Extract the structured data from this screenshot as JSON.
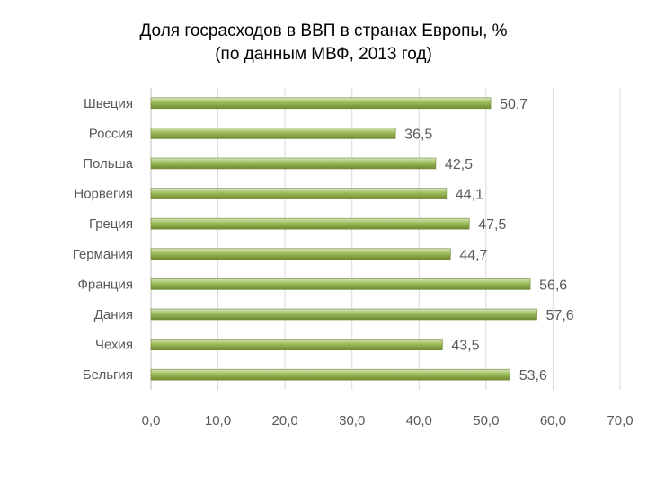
{
  "chart_data": {
    "type": "bar",
    "orientation": "horizontal",
    "title": "Доля госрасходов в ВВП в странах Европы, %",
    "subtitle": "(по данным МВФ, 2013 год)",
    "categories": [
      "Швеция",
      "Россия",
      "Польша",
      "Норвегия",
      "Греция",
      "Германия",
      "Франция",
      "Дания",
      "Чехия",
      "Бельгия"
    ],
    "values": [
      50.7,
      36.5,
      42.5,
      44.1,
      47.5,
      44.7,
      56.6,
      57.6,
      43.5,
      53.6
    ],
    "value_labels": [
      "50,7",
      "36,5",
      "42,5",
      "44,1",
      "47,5",
      "44,7",
      "56,6",
      "57,6",
      "43,5",
      "53,6"
    ],
    "xlim": [
      0,
      70
    ],
    "x_ticks": [
      0,
      10,
      20,
      30,
      40,
      50,
      60,
      70
    ],
    "x_tick_labels": [
      "0,0",
      "10,0",
      "20,0",
      "30,0",
      "40,0",
      "50,0",
      "60,0",
      "70,0"
    ],
    "grid": true,
    "legend": "none",
    "bar_color": "#9bbb59",
    "bar_highlight_color": "#d7e4bd",
    "bar_edge_color": "#6f8a33"
  }
}
